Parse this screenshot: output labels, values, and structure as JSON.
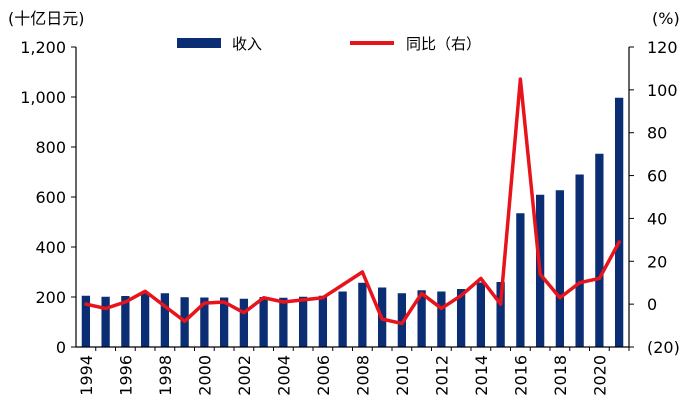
{
  "chart_data": {
    "type": "bar+line",
    "left_unit": "(十亿日元)",
    "right_unit": "(%)",
    "categories": [
      "1994",
      "1995",
      "1996",
      "1997",
      "1998",
      "1999",
      "2000",
      "2001",
      "2002",
      "2003",
      "2004",
      "2005",
      "2006",
      "2007",
      "2008",
      "2009",
      "2010",
      "2011",
      "2012",
      "2013",
      "2014",
      "2015",
      "2016",
      "2017",
      "2018",
      "2019",
      "2020",
      "2021"
    ],
    "x_tick_labels": [
      "1994",
      "1996",
      "1998",
      "2000",
      "2002",
      "2004",
      "2006",
      "2008",
      "2010",
      "2012",
      "2014",
      "2016",
      "2018",
      "2020"
    ],
    "y_left": {
      "min": 0,
      "max": 1200,
      "step": 200,
      "tick_labels": [
        "0",
        "200",
        "400",
        "600",
        "800",
        "1,000",
        "1,200"
      ]
    },
    "y_right": {
      "min": -20,
      "max": 120,
      "step": 20,
      "tick_labels": [
        "(20)",
        "0",
        "20",
        "40",
        "60",
        "80",
        "100",
        "120"
      ]
    },
    "series": [
      {
        "name": "收入",
        "type": "bar",
        "axis": "left",
        "color": "#0a2d73",
        "values": [
          205,
          201,
          204,
          218,
          215,
          199,
          198,
          198,
          193,
          200,
          197,
          201,
          205,
          222,
          257,
          238,
          215,
          227,
          222,
          232,
          258,
          260,
          535,
          609,
          627,
          690,
          773,
          997
        ]
      },
      {
        "name": "同比（右）",
        "type": "line",
        "axis": "right",
        "color": "#e8141b",
        "values": [
          0,
          -2,
          1,
          6,
          -1,
          -8,
          0.5,
          1,
          -4,
          3,
          1,
          2,
          3,
          9,
          15,
          -7,
          -9,
          5,
          -2,
          4,
          12,
          0,
          105,
          14,
          3,
          10,
          12,
          29
        ]
      }
    ],
    "legend_position": "top-center",
    "grid": false
  }
}
